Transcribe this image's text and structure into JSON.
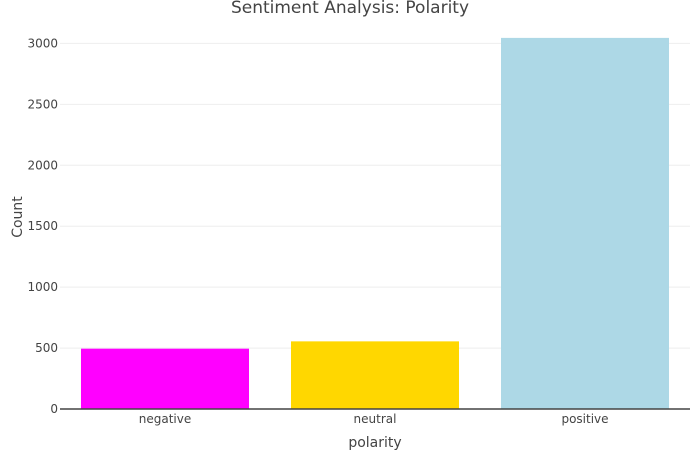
{
  "chart_data": {
    "type": "bar",
    "title": "Sentiment Analysis: Polarity",
    "xlabel": "polarity",
    "ylabel": "Count",
    "categories": [
      "negative",
      "neutral",
      "positive"
    ],
    "values": [
      495,
      555,
      3045
    ],
    "bar_colors": [
      "#ff00ff",
      "#ffd700",
      "#add8e6"
    ],
    "ylim": [
      0,
      3200
    ],
    "yticks": [
      0,
      500,
      1000,
      1500,
      2000,
      2500,
      3000
    ],
    "ytick_labels": [
      "0",
      "500",
      "1000",
      "1500",
      "2000",
      "2500",
      "3000"
    ],
    "grid": true,
    "legend": "none"
  }
}
